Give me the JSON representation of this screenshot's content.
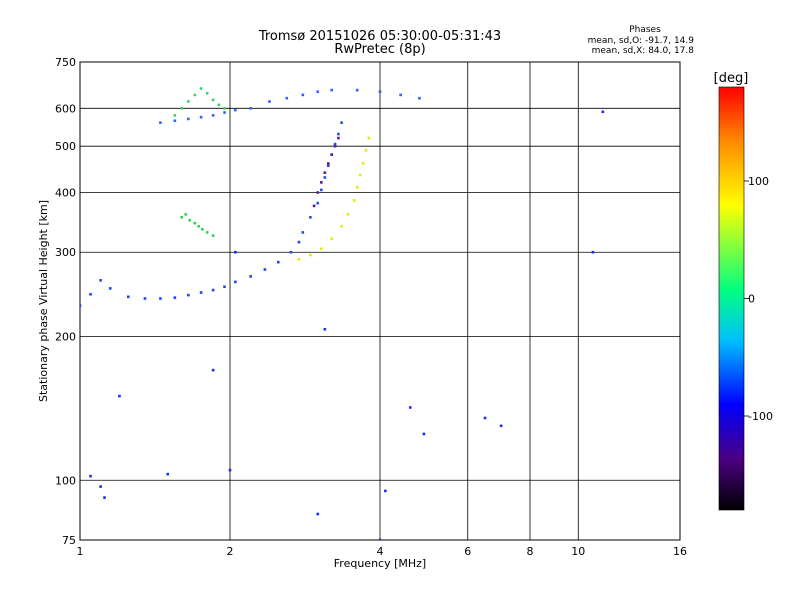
{
  "chart_data": {
    "type": "scatter",
    "title": "Tromsø 20151026 05:30:00-05:31:43",
    "subtitle": "RwPretec (8p)",
    "xlabel": "Frequency [MHz]",
    "ylabel": "Stationary phase Virtual Height [km]",
    "xscale": "log",
    "yscale": "log",
    "xlim": [
      1,
      16
    ],
    "ylim": [
      75,
      750
    ],
    "x_ticks": [
      1,
      2,
      4,
      6,
      8,
      10,
      16
    ],
    "y_ticks": [
      75,
      100,
      200,
      300,
      400,
      500,
      600,
      750
    ],
    "grid": true,
    "phase_stats": {
      "heading": "Phases",
      "o_line": "mean, sd,O: -91.7, 14.9",
      "x_line": "mean, sd,X:  84.0, 17.8"
    },
    "colorbar": {
      "label": "[deg]",
      "range": [
        -180,
        180
      ],
      "ticks": [
        100,
        0,
        -100
      ],
      "colors": [
        "#000000",
        "#4b0082",
        "#0000ff",
        "#00bfff",
        "#00ff80",
        "#ffff00",
        "#ff8c00",
        "#ff0000"
      ]
    },
    "series": [
      {
        "trace": "low-trace",
        "color": "#1e40ff",
        "x": [
          1.0,
          1.05,
          1.1,
          1.15,
          1.25,
          1.35,
          1.45,
          1.55,
          1.65,
          1.75,
          1.85,
          1.95,
          2.05,
          2.2,
          2.35,
          2.5,
          2.65,
          2.75
        ],
        "y": [
          232,
          245,
          262,
          252,
          242,
          240,
          240,
          241,
          244,
          247,
          250,
          254,
          260,
          267,
          276,
          286,
          300,
          315
        ]
      },
      {
        "trace": "blue-branch",
        "color": "#2050e0",
        "x": [
          2.8,
          2.9,
          3.0,
          3.05,
          3.1,
          3.15,
          3.2,
          3.25,
          3.3,
          3.35
        ],
        "y": [
          330,
          355,
          380,
          405,
          430,
          455,
          480,
          505,
          530,
          560
        ]
      },
      {
        "trace": "purple-branch",
        "color": "#5a1aa0",
        "x": [
          2.95,
          3.0,
          3.05,
          3.1,
          3.15,
          3.2,
          3.25,
          3.3
        ],
        "y": [
          375,
          400,
          420,
          440,
          460,
          480,
          500,
          520
        ]
      },
      {
        "trace": "yellow-branch",
        "color": "#e8e800",
        "x": [
          2.75,
          2.9,
          3.05,
          3.2,
          3.35,
          3.45,
          3.55,
          3.6,
          3.65,
          3.7,
          3.75,
          3.8
        ],
        "y": [
          290,
          296,
          305,
          320,
          340,
          360,
          385,
          410,
          435,
          460,
          490,
          520
        ]
      },
      {
        "trace": "top-band",
        "color": "#3060ff",
        "x": [
          1.45,
          1.55,
          1.65,
          1.75,
          1.85,
          1.95,
          2.05,
          2.2,
          2.4,
          2.6,
          2.8,
          3.0,
          3.2,
          3.6,
          4.0,
          4.4,
          4.8
        ],
        "y": [
          560,
          565,
          570,
          575,
          580,
          588,
          595,
          600,
          620,
          630,
          640,
          650,
          655,
          655,
          650,
          640,
          630
        ]
      },
      {
        "trace": "upper-left-green",
        "color": "#40d060",
        "x": [
          1.55,
          1.6,
          1.65,
          1.7,
          1.75,
          1.8,
          1.85,
          1.9,
          1.95
        ],
        "y": [
          580,
          600,
          620,
          640,
          660,
          645,
          625,
          610,
          600
        ]
      },
      {
        "trace": "mid-green-cluster",
        "color": "#30d050",
        "x": [
          1.6,
          1.63,
          1.66,
          1.7,
          1.73,
          1.76,
          1.8,
          1.85
        ],
        "y": [
          355,
          360,
          350,
          345,
          340,
          335,
          330,
          325
        ]
      },
      {
        "trace": "scattered",
        "color": "#1a2aff",
        "x": [
          1.05,
          1.1,
          1.12,
          1.2,
          1.5,
          1.85,
          2.0,
          2.05,
          3.0,
          3.1,
          4.0,
          4.1,
          4.6,
          4.9,
          6.5,
          7.0,
          10.7,
          11.2
        ],
        "y": [
          102,
          97,
          92,
          150,
          103,
          170,
          105,
          300,
          85,
          207,
          75,
          95,
          142,
          125,
          135,
          130,
          300,
          590
        ]
      }
    ]
  }
}
